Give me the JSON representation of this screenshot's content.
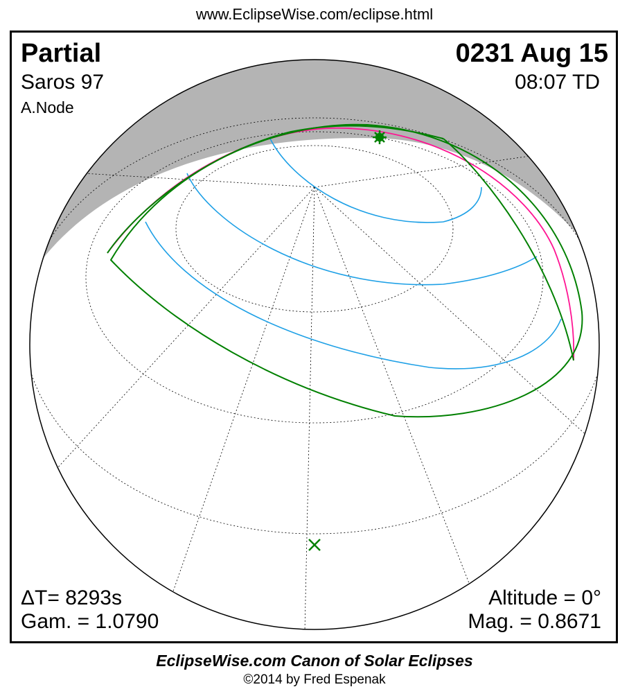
{
  "url": "www.EclipseWise.com/eclipse.html",
  "eclipse_type": "Partial",
  "saros": "Saros  97",
  "node": "A.Node",
  "date": "0231 Aug 15",
  "time": "08:07 TD",
  "delta_t": "ΔT=   8293s",
  "gamma": "Gam. = 1.0790",
  "altitude": "Altitude =  0°",
  "magnitude": "Mag. = 0.8671",
  "footer_title": "EclipseWise.com Canon of Solar Eclipses",
  "footer_copyright": "©2014 by Fred Espenak",
  "colors": {
    "night": "#b4b4b4",
    "limits": "#008000",
    "max_line": "#ff1493",
    "time_lines": "#1ea0e6",
    "borders": "#33dd33"
  }
}
